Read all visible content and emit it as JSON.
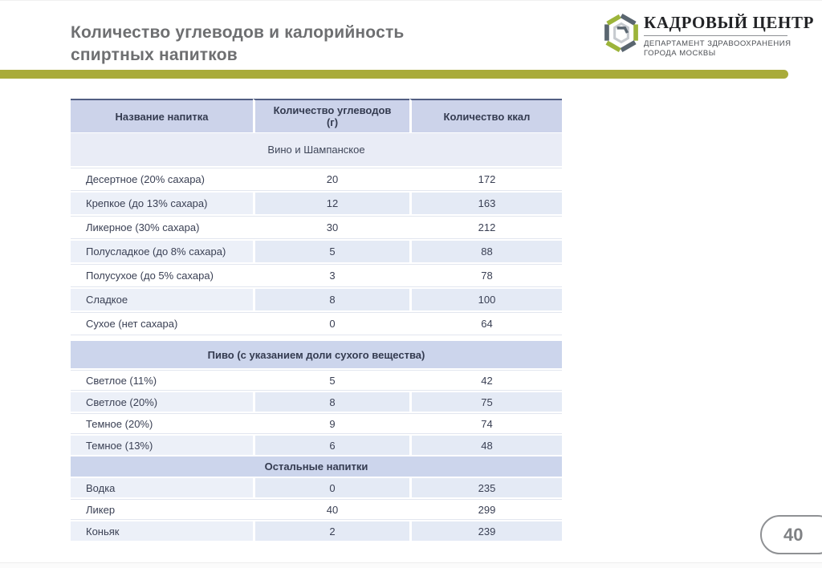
{
  "slide": {
    "title_line1": "Количество углеводов и калорийность",
    "title_line2": "спиртных напитков",
    "page_number": "40",
    "accent_color": "#a9ab3a"
  },
  "logo": {
    "org_name": "КАДРОВЫЙ ЦЕНТР",
    "subtitle_line1": "ДЕПАРТАМЕНТ ЗДРАВООХРАНЕНИЯ",
    "subtitle_line2": "ГОРОДА МОСКВЫ",
    "green": "#9cb43a",
    "gray": "#5a6670"
  },
  "table": {
    "columns": [
      {
        "label": "Название напитка",
        "sub": ""
      },
      {
        "label": "Количество углеводов",
        "sub": "(г)"
      },
      {
        "label": "Количество ккал",
        "sub": ""
      }
    ],
    "sections": [
      {
        "header": "Вино и Шампанское",
        "style": "light",
        "shade_offset": 0,
        "rows": [
          {
            "name": "Десертное (20% сахара)",
            "carbs": "20",
            "kcal": "172"
          },
          {
            "name": "Крепкое (до 13% сахара)",
            "carbs": "12",
            "kcal": "163"
          },
          {
            "name": "Ликерное (30% сахара)",
            "carbs": "30",
            "kcal": "212"
          },
          {
            "name": "Полусладкое (до 8% сахара)",
            "carbs": "5",
            "kcal": "88"
          },
          {
            "name": "Полусухое (до 5% сахара)",
            "carbs": "3",
            "kcal": "78"
          },
          {
            "name": "Сладкое",
            "carbs": "8",
            "kcal": "100"
          },
          {
            "name": "Сухое (нет сахара)",
            "carbs": "0",
            "kcal": "64"
          }
        ]
      },
      {
        "header": "Пиво (с указанием доли сухого вещества)",
        "style": "strong",
        "shade_offset": 0,
        "rows": [
          {
            "name": "Светлое (11%)",
            "carbs": "5",
            "kcal": "42"
          },
          {
            "name": "Светлое (20%)",
            "carbs": "8",
            "kcal": "75"
          },
          {
            "name": "Темное (20%)",
            "carbs": "9",
            "kcal": "74"
          },
          {
            "name": "Темное (13%)",
            "carbs": "6",
            "kcal": "48"
          }
        ]
      },
      {
        "header": "Остальные напитки",
        "style": "strong",
        "shade_offset": 1,
        "rows": [
          {
            "name": "Водка",
            "carbs": "0",
            "kcal": "235"
          },
          {
            "name": "Ликер",
            "carbs": "40",
            "kcal": "299"
          },
          {
            "name": "Коньяк",
            "carbs": "2",
            "kcal": "239"
          }
        ]
      }
    ]
  }
}
